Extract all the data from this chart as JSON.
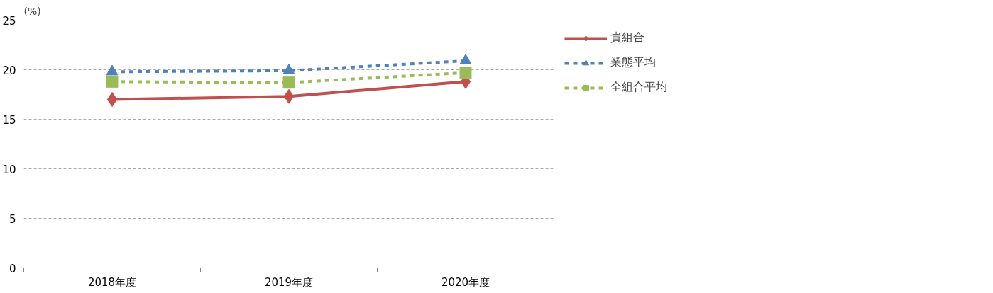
{
  "chart_data": {
    "type": "line",
    "ylabel": "(%)",
    "categories": [
      "2018年度",
      "2019年度",
      "2020年度"
    ],
    "series": [
      {
        "name": "貴組合",
        "color": "#c0504d",
        "values": [
          17.0,
          17.3,
          18.8
        ],
        "marker": "diamond",
        "line_style": "solid"
      },
      {
        "name": "業態平均",
        "color": "#4f81bd",
        "values": [
          19.8,
          19.9,
          20.9
        ],
        "marker": "triangle",
        "line_style": "dashed"
      },
      {
        "name": "全組合平均",
        "color": "#9bbb59",
        "values": [
          18.8,
          18.7,
          19.7
        ],
        "marker": "square",
        "line_style": "dashed"
      }
    ],
    "ylim": [
      0,
      25
    ],
    "yticks": [
      0,
      5,
      10,
      15,
      20,
      25
    ],
    "grid": "y",
    "legend": "right"
  }
}
